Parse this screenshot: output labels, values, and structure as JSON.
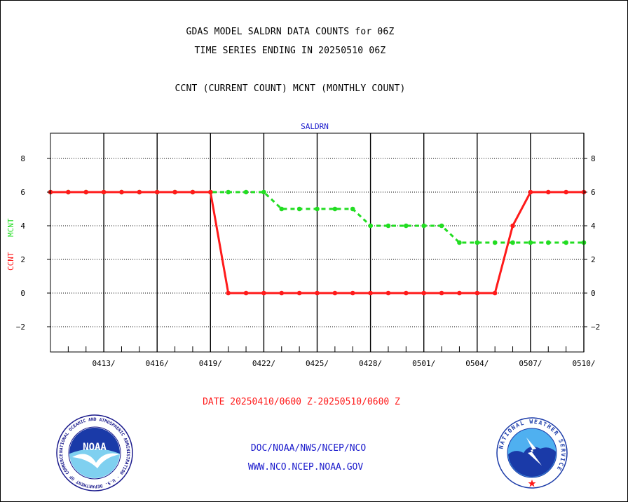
{
  "header": {
    "title_line1": "GDAS MODEL SALDRN DATA COUNTS for 06Z",
    "title_line2": "TIME SERIES ENDING IN 20250510 06Z",
    "title_line3": "CCNT (CURRENT COUNT) MCNT (MONTHLY COUNT)"
  },
  "footer": {
    "date_range": "DATE 20250410/0600 Z-20250510/0600 Z",
    "org_line": "DOC/NOAA/NWS/NCEP/NCO",
    "url_line": "WWW.NCO.NCEP.NOAA.GOV",
    "noaa_logo_text": "NOAA",
    "noaa_ring_text": "NATIONAL OCEANIC AND ATMOSPHERIC ADMINISTRATION · U.S. DEPARTMENT OF COMMERCE",
    "nws_ring_text": "NATIONAL WEATHER SERVICE"
  },
  "chart_data": {
    "type": "line",
    "title": "SALDRN",
    "ylabel_left": "CCNT",
    "ylabel_right": "MCNT",
    "ylim": [
      -3.5,
      9.5
    ],
    "yticks": [
      -2,
      0,
      2,
      4,
      6,
      8
    ],
    "xlim": [
      0,
      30
    ],
    "xticks": [
      {
        "x": 3,
        "label": "0413/"
      },
      {
        "x": 6,
        "label": "0416/"
      },
      {
        "x": 9,
        "label": "0419/"
      },
      {
        "x": 12,
        "label": "0422/"
      },
      {
        "x": 15,
        "label": "0425/"
      },
      {
        "x": 18,
        "label": "0428/"
      },
      {
        "x": 21,
        "label": "0501/"
      },
      {
        "x": 24,
        "label": "0504/"
      },
      {
        "x": 27,
        "label": "0507/"
      },
      {
        "x": 30,
        "label": "0510/"
      }
    ],
    "grid": true,
    "colors": {
      "ccnt": "#ff1a1a",
      "mcnt": "#22dd22",
      "title": "#1a1acc"
    },
    "series": [
      {
        "name": "CCNT",
        "x": [
          0,
          1,
          2,
          3,
          4,
          5,
          6,
          7,
          8,
          9,
          10,
          11,
          12,
          13,
          14,
          15,
          16,
          17,
          18,
          19,
          20,
          21,
          22,
          23,
          24,
          25,
          26,
          27,
          28,
          29,
          30
        ],
        "values": [
          6,
          6,
          6,
          6,
          6,
          6,
          6,
          6,
          6,
          6,
          0,
          0,
          0,
          0,
          0,
          0,
          0,
          0,
          0,
          0,
          0,
          0,
          0,
          0,
          0,
          0,
          4,
          6,
          6,
          6,
          6
        ]
      },
      {
        "name": "MCNT",
        "x": [
          0,
          1,
          2,
          3,
          4,
          5,
          6,
          7,
          8,
          9,
          10,
          11,
          12,
          13,
          14,
          15,
          16,
          17,
          18,
          19,
          20,
          21,
          22,
          23,
          24,
          25,
          26,
          27,
          28,
          29,
          30
        ],
        "values": [
          6,
          6,
          6,
          6,
          6,
          6,
          6,
          6,
          6,
          6,
          6,
          6,
          6,
          5,
          5,
          5,
          5,
          5,
          4,
          4,
          4,
          4,
          4,
          3,
          3,
          3,
          3,
          3,
          3,
          3,
          3
        ]
      }
    ]
  }
}
